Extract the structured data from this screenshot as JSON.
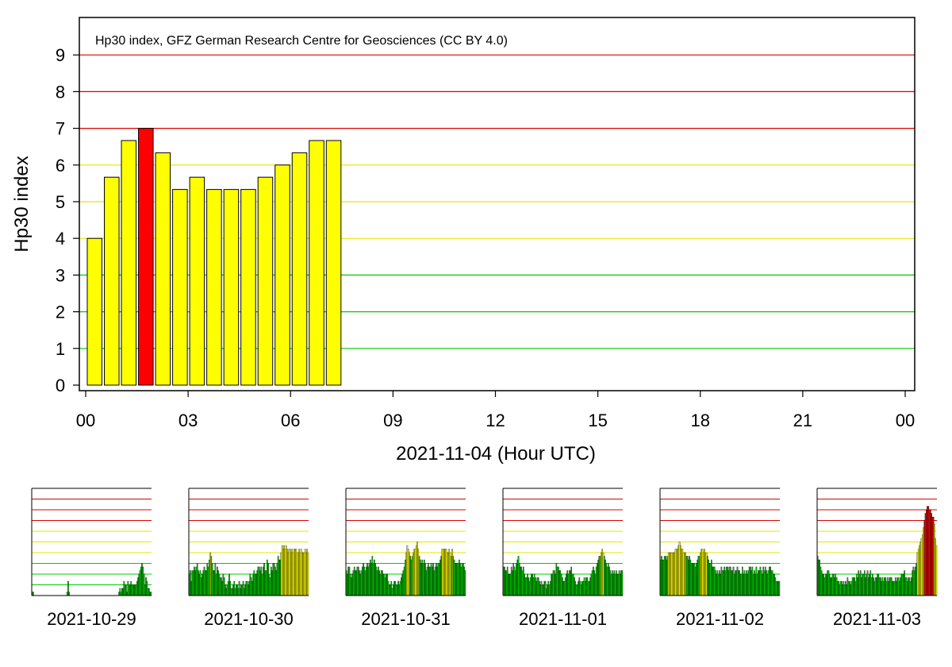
{
  "chart_data": [
    {
      "type": "bar",
      "title": "Hp30 index, GFZ German Research Centre for Geosciences (CC BY 4.0)",
      "ylabel": "Hp30 index",
      "xlabel": "2021-11-04 (Hour UTC)",
      "ylim": [
        0,
        10
      ],
      "yticks": [
        "0",
        "1",
        "2",
        "3",
        "4",
        "5",
        "6",
        "7",
        "8",
        "9"
      ],
      "xlim_hours": [
        0,
        24
      ],
      "xticks": [
        "00",
        "03",
        "06",
        "09",
        "12",
        "15",
        "18",
        "21",
        "00"
      ],
      "bar_width_hours": 0.5,
      "start_hours": [
        0,
        0.5,
        1,
        1.5,
        2,
        2.5,
        3,
        3.5,
        4,
        4.5,
        5,
        5.5,
        6,
        6.5,
        7
      ],
      "values": [
        4.0,
        5.667,
        6.667,
        7.0,
        6.333,
        5.333,
        5.667,
        5.333,
        5.333,
        5.333,
        5.667,
        6.0,
        6.333,
        6.667,
        6.667
      ],
      "gridlines": [
        {
          "y": 1,
          "color": "#00cc00"
        },
        {
          "y": 2,
          "color": "#00cc00"
        },
        {
          "y": 3,
          "color": "#00cc00"
        },
        {
          "y": 4,
          "color": "#e6e600"
        },
        {
          "y": 5,
          "color": "#e6e600"
        },
        {
          "y": 6,
          "color": "#e6e600"
        },
        {
          "y": 7,
          "color": "#dd0000"
        },
        {
          "y": 8,
          "color": "#dd0000"
        },
        {
          "y": 9,
          "color": "#dd0000"
        }
      ],
      "colors": {
        "low": "#00cc00",
        "mid": "#ffff00",
        "high": "#ff0000"
      }
    },
    {
      "type": "bar",
      "xlabel": "2021-10-29",
      "ylim": [
        0,
        10
      ],
      "values": [
        0.33,
        0.33,
        0,
        0,
        0,
        0,
        0,
        0,
        0,
        0,
        0,
        0,
        0,
        0,
        0,
        0,
        0,
        0,
        0,
        0,
        0,
        0,
        0,
        0,
        0,
        0,
        0,
        0,
        0,
        0,
        0,
        0,
        0,
        0,
        0,
        0.33,
        1.33,
        0.33,
        0,
        0,
        0,
        0,
        0,
        0,
        0,
        0,
        0,
        0,
        0,
        0,
        0,
        0,
        0,
        0,
        0,
        0,
        0,
        0,
        0,
        0,
        0,
        0,
        0,
        0,
        0,
        0,
        0,
        0,
        0,
        0,
        0,
        0,
        0,
        0,
        0,
        0,
        0,
        0,
        0,
        0,
        0,
        0,
        0,
        0,
        0,
        0,
        0,
        0.33,
        0.67,
        0.33,
        0.67,
        0.67,
        1.33,
        1.0,
        1.0,
        0.33,
        1.33,
        1.0,
        1.0,
        1.33,
        1.0,
        1.0,
        1.0,
        1.0,
        1.0,
        1.33,
        1.67,
        2.0,
        2.33,
        2.67,
        3.0,
        2.67,
        2.0,
        1.0,
        1.67,
        1.33,
        0.67,
        0.67,
        0.33,
        0.33
      ]
    },
    {
      "type": "bar",
      "xlabel": "2021-10-30",
      "ylim": [
        0,
        10
      ],
      "values": [
        2.0,
        2.33,
        1.33,
        2.33,
        2.33,
        2.67,
        2.33,
        2.67,
        3.0,
        2.33,
        2.0,
        2.33,
        1.67,
        2.0,
        2.33,
        2.67,
        2.33,
        2.33,
        3.0,
        2.67,
        3.33,
        4.0,
        3.67,
        3.0,
        2.33,
        2.33,
        3.0,
        2.0,
        2.67,
        2.33,
        2.0,
        1.67,
        1.67,
        1.33,
        2.0,
        1.67,
        1.0,
        0.67,
        1.0,
        1.33,
        2.0,
        1.33,
        0.67,
        0.67,
        1.0,
        1.33,
        0.67,
        1.0,
        1.0,
        0.67,
        1.33,
        0.67,
        1.0,
        1.0,
        1.33,
        0.67,
        1.0,
        1.33,
        1.33,
        1.0,
        1.33,
        2.0,
        1.67,
        1.33,
        2.0,
        2.33,
        2.0,
        2.0,
        2.33,
        2.67,
        2.67,
        2.33,
        2.67,
        2.0,
        2.67,
        3.0,
        2.33,
        2.33,
        3.33,
        3.0,
        2.0,
        1.67,
        2.67,
        2.33,
        3.0,
        3.0,
        2.67,
        2.33,
        3.0,
        3.67,
        3.33,
        3.33,
        4.0,
        4.67,
        4.33,
        4.67,
        4.33,
        4.67,
        4.33,
        4.0,
        4.33,
        4.33,
        4.0,
        4.33,
        4.0,
        4.33,
        4.33,
        4.33,
        4.0,
        4.0,
        4.33,
        4.0,
        4.33,
        4.0,
        4.0,
        4.0,
        4.33,
        4.0,
        4.33,
        4.0
      ]
    },
    {
      "type": "bar",
      "xlabel": "2021-10-31",
      "ylim": [
        0,
        10
      ],
      "values": [
        2.33,
        2.0,
        2.67,
        2.67,
        2.0,
        1.67,
        2.0,
        2.33,
        2.67,
        2.33,
        2.33,
        2.67,
        2.67,
        2.33,
        2.0,
        2.33,
        2.67,
        3.0,
        2.67,
        2.33,
        2.67,
        3.0,
        2.67,
        3.0,
        3.33,
        3.0,
        3.67,
        3.0,
        3.33,
        3.0,
        2.67,
        2.33,
        2.67,
        2.33,
        2.0,
        2.33,
        2.33,
        2.0,
        2.0,
        1.67,
        2.0,
        2.0,
        1.33,
        1.0,
        1.0,
        1.33,
        0.67,
        1.0,
        1.33,
        1.33,
        1.0,
        1.0,
        1.33,
        1.0,
        1.33,
        1.67,
        2.0,
        2.33,
        2.67,
        3.33,
        4.0,
        4.67,
        4.33,
        4.0,
        3.67,
        3.33,
        3.67,
        4.0,
        4.33,
        4.33,
        4.67,
        5.0,
        4.33,
        3.67,
        3.33,
        3.0,
        3.33,
        3.0,
        3.33,
        3.0,
        2.33,
        2.67,
        3.0,
        2.67,
        2.67,
        3.0,
        2.67,
        3.0,
        2.33,
        2.67,
        3.0,
        2.67,
        3.0,
        3.0,
        3.33,
        3.67,
        4.33,
        4.33,
        4.33,
        4.33,
        4.33,
        4.0,
        4.0,
        4.33,
        4.0,
        3.67,
        4.33,
        3.67,
        3.33,
        3.0,
        3.0,
        3.0,
        3.0,
        3.33,
        3.0,
        2.67,
        3.0,
        3.0,
        2.67,
        2.33
      ]
    },
    {
      "type": "bar",
      "xlabel": "2021-11-01",
      "ylim": [
        0,
        10
      ],
      "values": [
        2.67,
        2.67,
        2.33,
        2.33,
        2.67,
        2.0,
        2.0,
        2.0,
        2.67,
        2.33,
        3.0,
        2.67,
        2.33,
        3.0,
        3.33,
        3.67,
        3.0,
        2.67,
        2.67,
        2.33,
        2.67,
        2.0,
        1.67,
        1.67,
        2.0,
        1.67,
        1.33,
        1.67,
        2.0,
        2.0,
        1.67,
        2.0,
        1.67,
        1.33,
        1.67,
        1.67,
        1.33,
        1.0,
        1.33,
        1.0,
        1.0,
        1.33,
        1.33,
        0.67,
        1.0,
        1.33,
        1.0,
        1.33,
        2.0,
        2.0,
        2.33,
        2.33,
        2.0,
        3.0,
        2.67,
        2.67,
        2.33,
        2.33,
        2.0,
        1.67,
        1.33,
        1.33,
        1.67,
        2.0,
        2.33,
        2.0,
        2.33,
        2.33,
        2.67,
        2.0,
        2.0,
        1.67,
        1.33,
        1.0,
        1.0,
        1.33,
        1.67,
        1.33,
        1.0,
        1.33,
        1.33,
        1.67,
        1.33,
        1.67,
        1.67,
        1.33,
        1.33,
        1.67,
        2.0,
        2.33,
        2.67,
        2.33,
        2.0,
        2.67,
        3.0,
        3.33,
        3.67,
        3.67,
        4.0,
        4.33,
        4.0,
        3.67,
        3.33,
        3.0,
        2.67,
        3.0,
        2.67,
        2.33,
        2.0,
        2.33,
        2.0,
        2.33,
        2.0,
        2.33,
        2.0,
        2.0,
        2.33,
        2.0,
        2.33,
        2.33
      ]
    },
    {
      "type": "bar",
      "xlabel": "2021-11-02",
      "ylim": [
        0,
        10
      ],
      "values": [
        3.33,
        3.67,
        3.33,
        3.33,
        3.67,
        3.67,
        3.33,
        3.67,
        4.0,
        4.0,
        4.0,
        4.0,
        4.0,
        4.0,
        4.0,
        4.33,
        4.33,
        4.33,
        4.67,
        5.0,
        4.67,
        4.33,
        4.33,
        4.0,
        4.0,
        4.0,
        3.67,
        3.67,
        3.33,
        3.67,
        3.33,
        3.0,
        3.0,
        3.0,
        3.0,
        2.67,
        3.0,
        3.33,
        3.67,
        3.67,
        4.0,
        4.33,
        4.33,
        4.0,
        4.33,
        4.0,
        4.0,
        3.67,
        3.33,
        3.0,
        3.0,
        3.33,
        2.67,
        2.67,
        2.67,
        2.33,
        2.0,
        2.33,
        2.0,
        2.33,
        2.0,
        2.67,
        2.33,
        2.33,
        2.67,
        2.33,
        2.67,
        2.67,
        2.33,
        2.67,
        2.67,
        2.33,
        2.33,
        2.67,
        2.0,
        2.33,
        2.33,
        2.67,
        2.33,
        2.33,
        2.0,
        2.0,
        2.67,
        2.0,
        2.33,
        2.0,
        2.33,
        2.0,
        2.33,
        2.67,
        2.67,
        2.33,
        2.67,
        2.0,
        2.33,
        2.0,
        2.67,
        2.0,
        2.33,
        2.33,
        2.67,
        2.33,
        2.0,
        2.67,
        2.33,
        2.67,
        2.33,
        2.0,
        2.33,
        2.67,
        2.67,
        2.33,
        2.33,
        2.0,
        2.0,
        1.67,
        1.33,
        1.33,
        1.33,
        1.33
      ]
    },
    {
      "type": "bar",
      "xlabel": "2021-11-03",
      "ylim": [
        0,
        10
      ],
      "values": [
        3.67,
        3.33,
        3.33,
        2.67,
        2.33,
        2.0,
        2.0,
        1.67,
        2.0,
        2.0,
        2.33,
        2.33,
        2.0,
        1.67,
        1.67,
        2.0,
        2.0,
        1.67,
        2.0,
        1.67,
        1.33,
        1.33,
        1.0,
        1.33,
        1.33,
        1.0,
        1.33,
        1.0,
        1.33,
        1.0,
        1.67,
        1.33,
        1.33,
        1.0,
        1.33,
        1.67,
        1.67,
        1.67,
        1.33,
        2.0,
        1.67,
        2.33,
        2.0,
        2.33,
        1.67,
        2.0,
        2.0,
        2.33,
        1.67,
        2.0,
        2.33,
        1.67,
        2.0,
        2.33,
        1.67,
        2.0,
        1.67,
        1.33,
        1.67,
        1.67,
        2.0,
        2.0,
        1.67,
        1.67,
        1.33,
        1.67,
        1.33,
        1.67,
        1.67,
        1.33,
        1.67,
        1.33,
        1.67,
        1.67,
        1.67,
        1.33,
        1.33,
        1.33,
        1.67,
        1.33,
        1.67,
        1.67,
        1.33,
        1.67,
        2.0,
        2.0,
        2.0,
        2.33,
        1.67,
        1.67,
        1.33,
        1.67,
        1.67,
        1.33,
        1.67,
        2.33,
        2.67,
        2.33,
        2.67,
        3.0,
        4.0,
        4.33,
        4.67,
        5.0,
        5.33,
        5.67,
        6.33,
        7.0,
        7.67,
        8.0,
        8.33,
        8.33,
        8.0,
        8.0,
        7.67,
        7.33,
        7.33,
        6.67,
        5.33,
        4.67
      ]
    }
  ]
}
